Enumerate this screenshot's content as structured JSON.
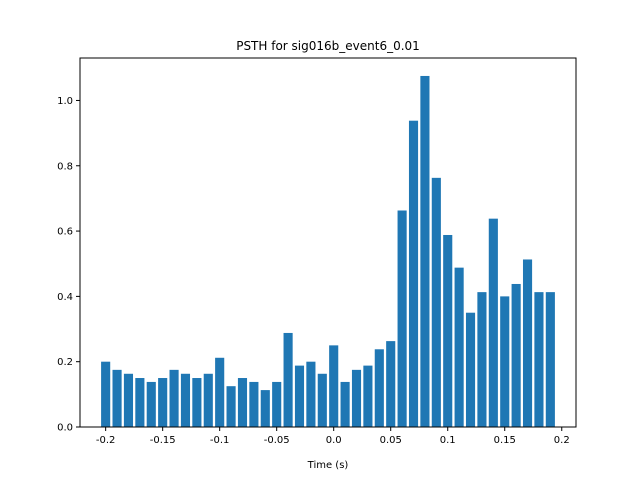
{
  "chart_data": {
    "type": "bar",
    "title": "PSTH for sig016b_event6_0.01",
    "xlabel": "Time (s)",
    "ylabel": "",
    "xlim": [
      -0.2225,
      0.2125
    ],
    "ylim": [
      0.0,
      1.13
    ],
    "grid": false,
    "bar_width": 0.008,
    "bar_color": "#1f77b4",
    "x_ticks": [
      -0.2,
      -0.15,
      -0.1,
      -0.05,
      0.0,
      0.05,
      0.1,
      0.15,
      0.2
    ],
    "x_tick_labels": [
      "-0.2",
      "-0.15",
      "-0.1",
      "-0.05",
      "0.0",
      "0.05",
      "0.1",
      "0.15",
      "0.2"
    ],
    "y_ticks": [
      0.0,
      0.2,
      0.4,
      0.6,
      0.8,
      1.0
    ],
    "y_tick_labels": [
      "0.0",
      "0.2",
      "0.4",
      "0.6",
      "0.8",
      "1.0"
    ],
    "x": [
      -0.2,
      -0.19,
      -0.18,
      -0.17,
      -0.16,
      -0.15,
      -0.14,
      -0.13,
      -0.12,
      -0.11,
      -0.1,
      -0.09,
      -0.08,
      -0.07,
      -0.06,
      -0.05,
      -0.04,
      -0.03,
      -0.02,
      -0.01,
      0.0,
      0.01,
      0.02,
      0.03,
      0.04,
      0.05,
      0.06,
      0.07,
      0.08,
      0.09,
      0.1,
      0.11,
      0.12,
      0.13,
      0.14,
      0.15,
      0.16,
      0.17,
      0.18,
      0.19
    ],
    "values": [
      0.2,
      0.175,
      0.163,
      0.15,
      0.138,
      0.15,
      0.175,
      0.163,
      0.15,
      0.163,
      0.212,
      0.125,
      0.15,
      0.138,
      0.113,
      0.138,
      0.288,
      0.188,
      0.2,
      0.163,
      0.25,
      0.138,
      0.175,
      0.188,
      0.238,
      0.263,
      0.663,
      0.938,
      1.075,
      0.763,
      0.588,
      0.488,
      0.35,
      0.413,
      0.638,
      0.4,
      0.438,
      0.513,
      0.413,
      0.413
    ]
  }
}
